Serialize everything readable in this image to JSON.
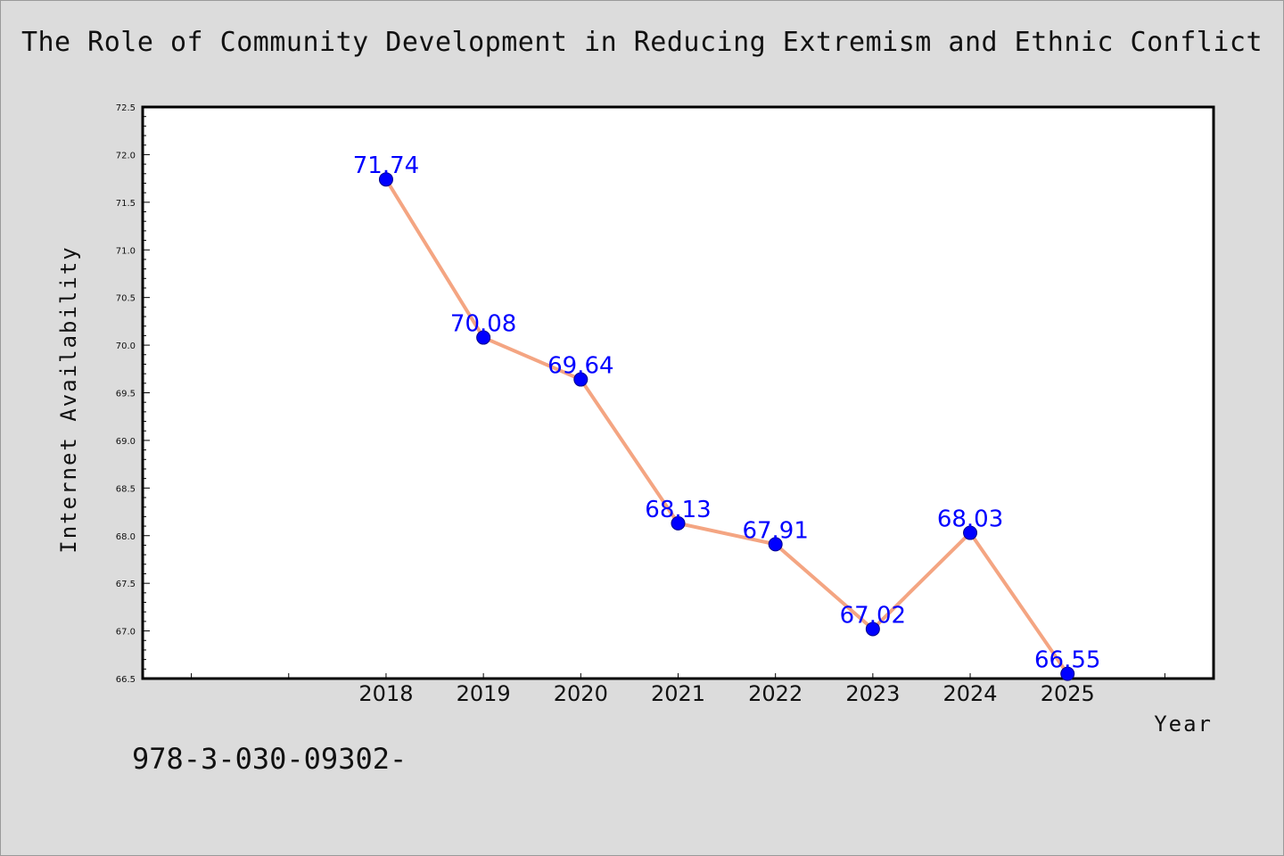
{
  "chart_data": {
    "type": "line",
    "title": "The Role of Community Development in Reducing Extremism and Ethnic Conflict",
    "xlabel": "Year",
    "ylabel": "Internet Availability",
    "x": [
      "2018",
      "2019",
      "2020",
      "2021",
      "2022",
      "2023",
      "2024",
      "2025"
    ],
    "xlim": [
      2015.5,
      2026.5
    ],
    "ylim": [
      66.5,
      72.5
    ],
    "yticks": [
      "66.5",
      "67.0",
      "67.5",
      "68.0",
      "68.5",
      "69.0",
      "69.5",
      "70.0",
      "70.5",
      "71.0",
      "71.5",
      "72.0",
      "72.5"
    ],
    "series": [
      {
        "values": [
          71.74,
          70.08,
          69.64,
          68.13,
          67.91,
          67.02,
          68.03,
          66.55
        ],
        "labels": [
          "71.74",
          "70.08",
          "69.64",
          "68.13",
          "67.91",
          "67.02",
          "68.03",
          "66.55"
        ],
        "line_color": "#f4a582",
        "marker_color": "#0000ff"
      }
    ],
    "grid": false,
    "legend": "none"
  },
  "footer": {
    "code": "978-3-030-09302-"
  }
}
